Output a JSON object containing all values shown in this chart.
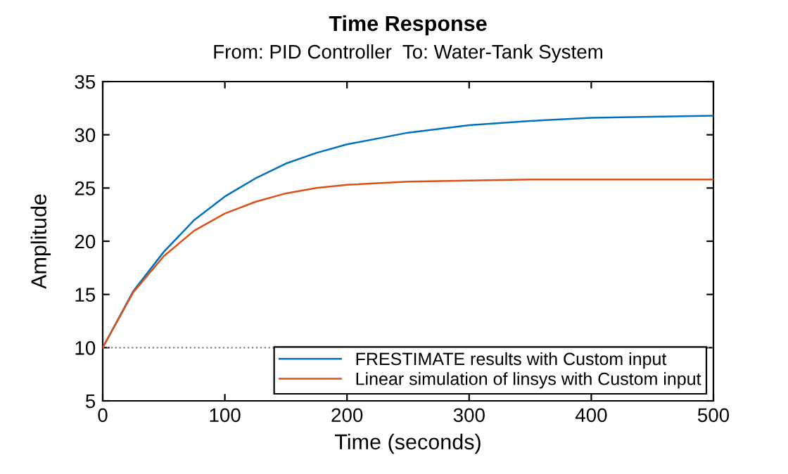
{
  "chart_data": {
    "type": "line",
    "title": "Time Response",
    "subtitle": "From: PID Controller  To: Water-Tank System",
    "xlabel": "Time (seconds)",
    "ylabel": "Amplitude",
    "x": [
      0,
      25,
      50,
      75,
      100,
      125,
      150,
      175,
      200,
      250,
      300,
      350,
      400,
      450,
      500
    ],
    "series": [
      {
        "name": "FRESTIMATE results with Custom input",
        "color": "#0072bd",
        "values": [
          10,
          15.3,
          19.0,
          22.0,
          24.2,
          25.9,
          27.3,
          28.3,
          29.1,
          30.2,
          30.9,
          31.3,
          31.6,
          31.7,
          31.8
        ]
      },
      {
        "name": "Linear simulation of linsys with Custom input",
        "color": "#d95319",
        "values": [
          10,
          15.2,
          18.6,
          21.0,
          22.6,
          23.7,
          24.5,
          25.0,
          25.3,
          25.6,
          25.7,
          25.8,
          25.8,
          25.8,
          25.8
        ]
      }
    ],
    "xlim": [
      0,
      500
    ],
    "xticks": [
      0,
      100,
      200,
      300,
      400,
      500
    ],
    "ylim": [
      5,
      35
    ],
    "yticks": [
      5,
      10,
      15,
      20,
      25,
      30,
      35
    ],
    "ref_lines": [
      {
        "axis": "y",
        "value": 10,
        "color": "#808080",
        "line_style": "dotted"
      }
    ],
    "legend": "bottom right",
    "grid": false
  }
}
